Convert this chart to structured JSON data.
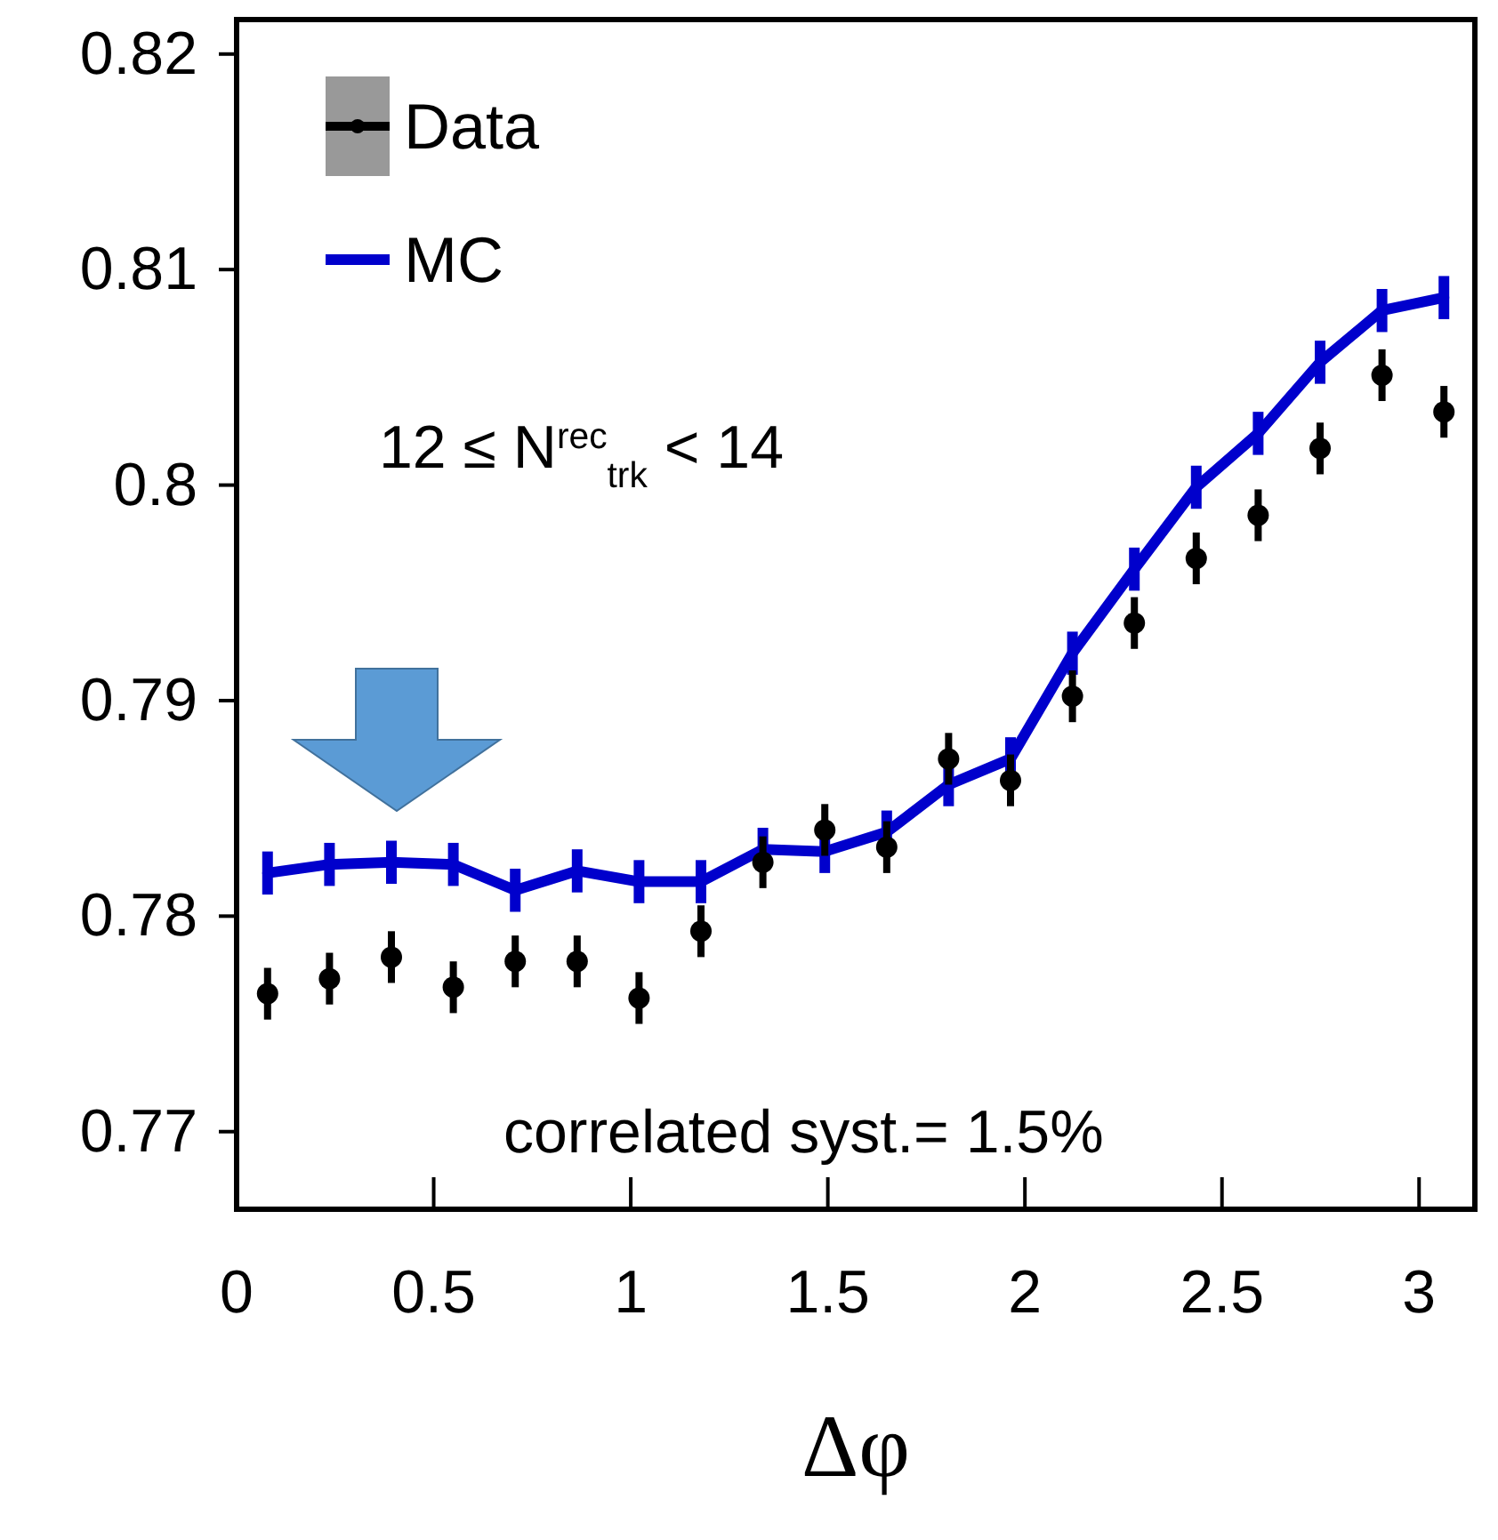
{
  "chart_data": {
    "type": "line",
    "xlabel": "Δφ",
    "xlim": [
      0,
      3.1416
    ],
    "xticks": [
      0,
      0.5,
      1,
      1.5,
      2,
      2.5,
      3
    ],
    "ylim": [
      0.7664,
      0.8216
    ],
    "yticks": [
      0.77,
      0.78,
      0.79,
      0.8,
      0.81,
      0.82
    ],
    "x": [
      0.0785,
      0.2356,
      0.3927,
      0.5498,
      0.7069,
      0.864,
      1.021,
      1.1781,
      1.3352,
      1.4923,
      1.6494,
      1.8064,
      1.9635,
      2.1206,
      2.2777,
      2.4347,
      2.5918,
      2.7489,
      2.906,
      3.0631
    ],
    "series": [
      {
        "name": "Data",
        "type": "scatter",
        "marker": "circle",
        "color": "#000000",
        "values": [
          0.7764,
          0.7771,
          0.7781,
          0.7767,
          0.7779,
          0.7779,
          0.7762,
          0.7793,
          0.7825,
          0.784,
          0.7832,
          0.7873,
          0.7863,
          0.7902,
          0.7936,
          0.7966,
          0.7986,
          0.8017,
          0.8051,
          0.8034
        ],
        "errors": [
          0.0012,
          0.0012,
          0.0012,
          0.0012,
          0.0012,
          0.0012,
          0.0012,
          0.0012,
          0.0012,
          0.0012,
          0.0012,
          0.0012,
          0.0012,
          0.0012,
          0.0012,
          0.0012,
          0.0012,
          0.0012,
          0.0012,
          0.0012
        ]
      },
      {
        "name": "MC",
        "type": "line",
        "marker": "none",
        "line_style": "solid",
        "color": "#0000cc",
        "values": [
          0.782,
          0.7824,
          0.7825,
          0.7824,
          0.7812,
          0.7821,
          0.7816,
          0.7816,
          0.7831,
          0.783,
          0.7839,
          0.7861,
          0.7873,
          0.7922,
          0.7961,
          0.7999,
          0.8024,
          0.8057,
          0.8081,
          0.8087
        ],
        "errors": [
          0.001,
          0.001,
          0.001,
          0.001,
          0.001,
          0.001,
          0.001,
          0.001,
          0.001,
          0.001,
          0.001,
          0.001,
          0.001,
          0.001,
          0.001,
          0.001,
          0.001,
          0.001,
          0.001,
          0.001
        ]
      }
    ],
    "legend": "top left",
    "grid": false,
    "annotations": [
      "12 ≤ N$^{rec}$$_{trk}$ < 14",
      "correlated syst.= 1.5%"
    ]
  }
}
